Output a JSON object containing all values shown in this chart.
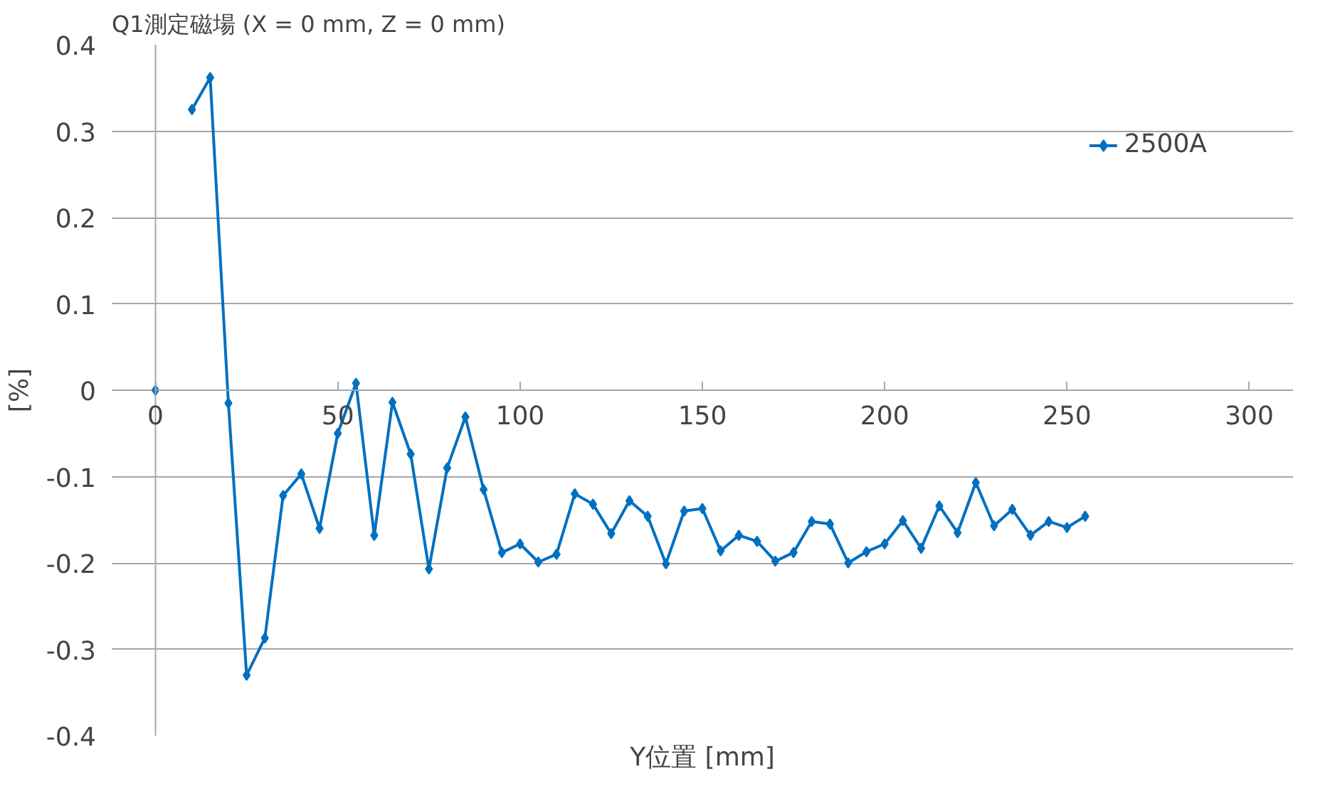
{
  "chart_data": {
    "type": "line",
    "title": "Q1測定磁場 (X = 0 mm, Z = 0 mm)",
    "xlabel": "Y位置 [mm]",
    "ylabel": "[%]",
    "x": [
      0,
      5,
      10,
      15,
      20,
      25,
      30,
      35,
      40,
      45,
      50,
      55,
      60,
      65,
      70,
      75,
      80,
      85,
      90,
      95,
      100,
      105,
      110,
      115,
      120,
      125,
      130,
      135,
      140,
      145,
      150,
      155,
      160,
      165,
      170,
      175,
      180,
      185,
      190,
      195,
      200,
      205,
      210,
      215,
      220,
      225,
      230,
      235,
      240,
      245,
      250,
      255
    ],
    "series": [
      {
        "name": "2500A",
        "color": "#0070c0",
        "values": [
          0,
          null,
          0.325,
          0.362,
          -0.015,
          -0.33,
          -0.287,
          -0.122,
          -0.097,
          -0.16,
          -0.05,
          0.008,
          -0.168,
          -0.014,
          -0.074,
          -0.207,
          -0.09,
          -0.031,
          -0.115,
          -0.188,
          -0.178,
          -0.199,
          -0.19,
          -0.12,
          -0.132,
          -0.166,
          -0.128,
          -0.146,
          -0.201,
          -0.14,
          -0.137,
          -0.186,
          -0.168,
          -0.175,
          -0.198,
          -0.188,
          -0.152,
          -0.155,
          -0.2,
          -0.187,
          -0.178,
          -0.151,
          -0.183,
          -0.134,
          -0.165,
          -0.107,
          -0.157,
          -0.138,
          -0.168,
          -0.152,
          -0.159,
          -0.146
        ]
      }
    ],
    "xlim": [
      0,
      300
    ],
    "xticks": [
      0,
      50,
      100,
      150,
      200,
      250,
      300
    ],
    "ylim": [
      -0.4,
      0.4
    ],
    "yticks": [
      -0.4,
      -0.3,
      -0.2,
      -0.1,
      0,
      0.1,
      0.2,
      0.3,
      0.4
    ],
    "grid": "y",
    "legend": "top right",
    "marker": "diamond",
    "line_style": "solid"
  }
}
